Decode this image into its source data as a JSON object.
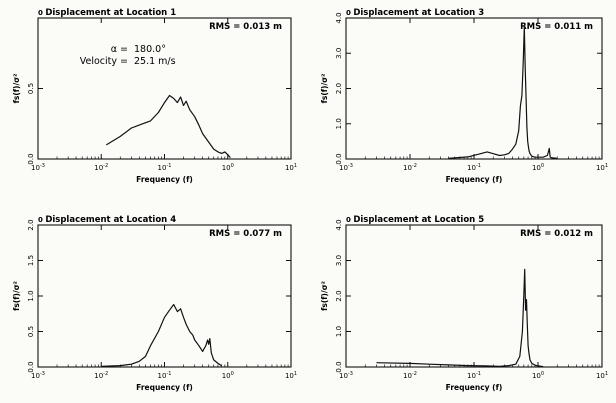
{
  "chart_data": [
    {
      "type": "line",
      "title": "Displacement at Location 1",
      "xlabel": "Frequency (f)",
      "ylabel": "fs(f)/σ²",
      "x_scale": "log",
      "xlim": [
        0.001,
        10
      ],
      "ylim": [
        0,
        1.0
      ],
      "y_ticks": [
        "0.0",
        "0.5"
      ],
      "rms_label": "RMS =",
      "rms_value": "0.013 m",
      "annotations": [
        {
          "label": "α =",
          "value": "180.0°"
        },
        {
          "label": "Velocity =",
          "value": "25.1 m/s"
        }
      ],
      "x": [
        0.012,
        0.02,
        0.03,
        0.045,
        0.06,
        0.08,
        0.1,
        0.12,
        0.14,
        0.16,
        0.18,
        0.2,
        0.22,
        0.25,
        0.3,
        0.35,
        0.4,
        0.5,
        0.6,
        0.7,
        0.8,
        0.9,
        1.0,
        1.1
      ],
      "y": [
        0.1,
        0.16,
        0.22,
        0.25,
        0.27,
        0.33,
        0.4,
        0.45,
        0.43,
        0.4,
        0.44,
        0.38,
        0.41,
        0.35,
        0.3,
        0.24,
        0.18,
        0.12,
        0.07,
        0.05,
        0.04,
        0.05,
        0.03,
        0.01
      ]
    },
    {
      "type": "line",
      "title": "Displacement at Location 3",
      "xlabel": "Frequency (f)",
      "ylabel": "fs(f)/σ²",
      "x_scale": "log",
      "xlim": [
        0.001,
        10
      ],
      "ylim": [
        0,
        4.0
      ],
      "y_ticks": [
        "0.0",
        "1.0",
        "2.0",
        "3.0",
        "4.0"
      ],
      "rms_label": "RMS =",
      "rms_value": "0.011 m",
      "x": [
        0.04,
        0.08,
        0.12,
        0.16,
        0.2,
        0.25,
        0.3,
        0.35,
        0.4,
        0.45,
        0.5,
        0.53,
        0.56,
        0.59,
        0.61,
        0.63,
        0.65,
        0.67,
        0.69,
        0.72,
        0.75,
        0.8,
        0.9,
        1.0,
        1.2,
        1.4,
        1.5,
        1.55,
        1.6,
        1.7,
        2.0
      ],
      "y": [
        0.02,
        0.06,
        0.14,
        0.2,
        0.15,
        0.1,
        0.12,
        0.16,
        0.28,
        0.42,
        0.8,
        1.5,
        1.8,
        2.8,
        3.75,
        2.6,
        1.8,
        0.9,
        0.5,
        0.25,
        0.15,
        0.08,
        0.05,
        0.05,
        0.05,
        0.1,
        0.3,
        0.05,
        0.04,
        0.03,
        0.02
      ]
    },
    {
      "type": "line",
      "title": "Displacement at Location 4",
      "xlabel": "Frequency (f)",
      "ylabel": "fs(f)/σ²",
      "x_scale": "log",
      "xlim": [
        0.001,
        10
      ],
      "ylim": [
        0,
        2.0
      ],
      "y_ticks": [
        "0.0",
        "0.5",
        "1.0",
        "1.5",
        "2.0"
      ],
      "rms_label": "RMS =",
      "rms_value": "0.077 m",
      "x": [
        0.01,
        0.02,
        0.03,
        0.04,
        0.05,
        0.06,
        0.08,
        0.1,
        0.12,
        0.14,
        0.16,
        0.18,
        0.2,
        0.22,
        0.25,
        0.28,
        0.3,
        0.35,
        0.4,
        0.45,
        0.48,
        0.5,
        0.52,
        0.55,
        0.6,
        0.7,
        0.8
      ],
      "y": [
        0.01,
        0.02,
        0.04,
        0.08,
        0.15,
        0.3,
        0.5,
        0.7,
        0.8,
        0.88,
        0.78,
        0.82,
        0.7,
        0.6,
        0.5,
        0.45,
        0.38,
        0.3,
        0.22,
        0.3,
        0.38,
        0.32,
        0.4,
        0.2,
        0.1,
        0.05,
        0.02
      ]
    },
    {
      "type": "line",
      "title": "Displacement at Location 5",
      "xlabel": "Frequency (f)",
      "ylabel": "fs(f)/σ²",
      "x_scale": "log",
      "xlim": [
        0.001,
        10
      ],
      "ylim": [
        0,
        4.0
      ],
      "y_ticks": [
        "0.0",
        "1.0",
        "2.0",
        "3.0",
        "4.0"
      ],
      "rms_label": "RMS =",
      "rms_value": "0.012 m",
      "x": [
        0.003,
        0.01,
        0.02,
        0.04,
        0.08,
        0.15,
        0.25,
        0.35,
        0.45,
        0.52,
        0.57,
        0.6,
        0.62,
        0.64,
        0.66,
        0.68,
        0.7,
        0.72,
        0.75,
        0.8,
        0.9,
        1.0,
        1.2
      ],
      "y": [
        0.12,
        0.1,
        0.08,
        0.06,
        0.04,
        0.03,
        0.02,
        0.04,
        0.08,
        0.3,
        1.0,
        2.0,
        2.75,
        1.6,
        1.9,
        1.2,
        0.6,
        0.4,
        0.2,
        0.1,
        0.05,
        0.03,
        0.01
      ]
    }
  ]
}
